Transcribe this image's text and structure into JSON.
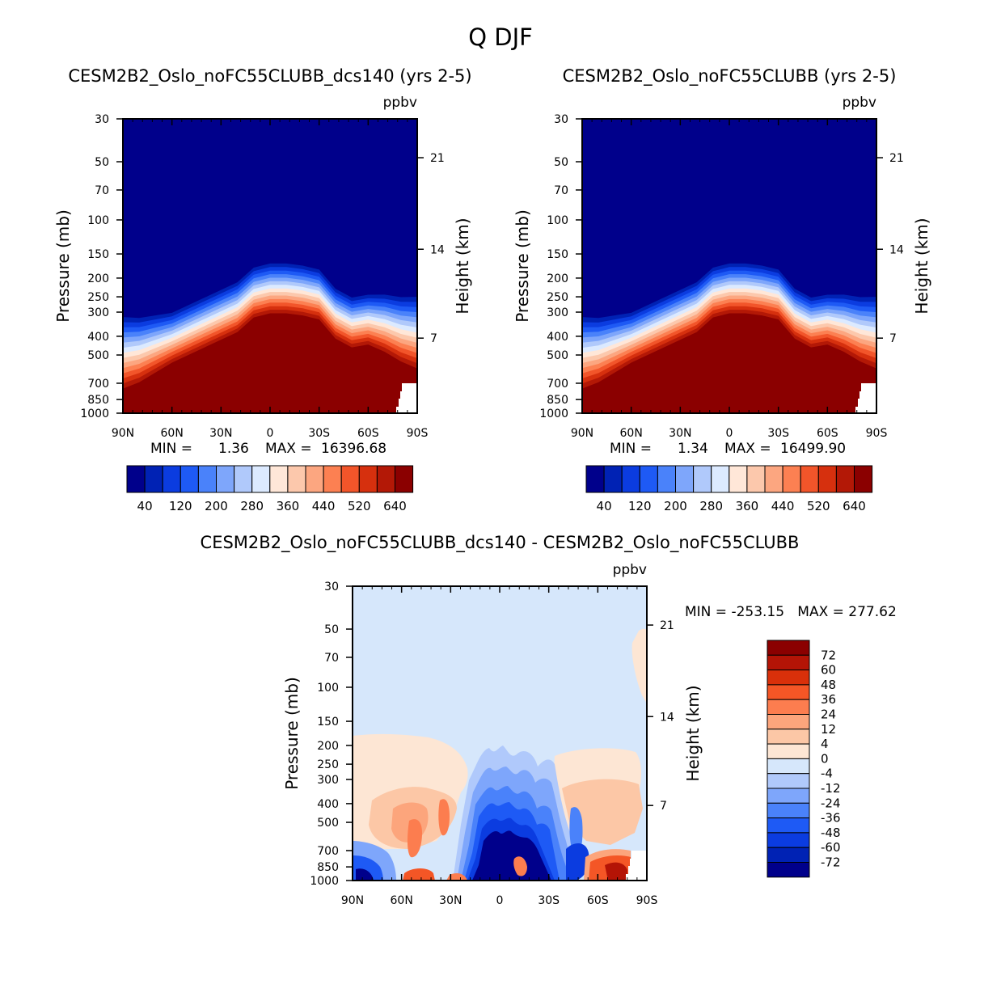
{
  "figure": {
    "title": "Q DJF"
  },
  "colors": {
    "seq": [
      "#00008b",
      "#0022b4",
      "#0b3ce0",
      "#1e5af5",
      "#4a82fa",
      "#7ea6fb",
      "#b0c9fb",
      "#dceaff",
      "#ffe7d8",
      "#fcc8ac",
      "#fca680",
      "#fc8052",
      "#f2552a",
      "#d6300e",
      "#b31806",
      "#8b0000"
    ],
    "diff": [
      "#00008b",
      "#0022b4",
      "#0b3ce0",
      "#1e5af5",
      "#4a82fa",
      "#7ea6fb",
      "#b0c9fb",
      "#d6e7fb",
      "#fde6d4",
      "#fcc7a6",
      "#fca57c",
      "#fc7d4f",
      "#f45626",
      "#d9300a",
      "#b41406",
      "#8b0000"
    ]
  },
  "chart_data": [
    {
      "type": "contour",
      "title": "CESM2B2_Oslo_noFC55CLUBB_dcs140 (yrs 2-5)",
      "units": "ppbv",
      "ylabel": "Pressure (mb)",
      "ylabel_right": "Height (km)",
      "x_ticklabels": [
        "90N",
        "60N",
        "30N",
        "0",
        "30S",
        "60S",
        "90S"
      ],
      "y_ticklabels": [
        "30",
        "50",
        "70",
        "100",
        "150",
        "200",
        "250",
        "300",
        "400",
        "500",
        "700",
        "850",
        "1000"
      ],
      "y_right_ticklabels": [
        "21",
        "14",
        "7"
      ],
      "stats": {
        "min_label": "MIN =",
        "min": "1.36",
        "max_label": "MAX =",
        "max": "16396.68"
      },
      "colorbar_labels": [
        "40",
        "120",
        "200",
        "280",
        "360",
        "440",
        "520",
        "640"
      ],
      "profile_lat": [
        90,
        80,
        60,
        40,
        20,
        10,
        0,
        -10,
        -20,
        -30,
        -40,
        -50,
        -60,
        -70,
        -80,
        -90
      ],
      "profile_tropopause_mb": [
        420,
        410,
        360,
        300,
        250,
        210,
        200,
        200,
        205,
        215,
        270,
        300,
        290,
        300,
        320,
        330
      ]
    },
    {
      "type": "contour",
      "title": "CESM2B2_Oslo_noFC55CLUBB (yrs 2-5)",
      "units": "ppbv",
      "ylabel": "Pressure (mb)",
      "ylabel_right": "Height (km)",
      "x_ticklabels": [
        "90N",
        "60N",
        "30N",
        "0",
        "30S",
        "60S",
        "90S"
      ],
      "y_ticklabels": [
        "30",
        "50",
        "70",
        "100",
        "150",
        "200",
        "250",
        "300",
        "400",
        "500",
        "700",
        "850",
        "1000"
      ],
      "y_right_ticklabels": [
        "21",
        "14",
        "7"
      ],
      "stats": {
        "min_label": "MIN =",
        "min": "1.34",
        "max_label": "MAX =",
        "max": "16499.90"
      },
      "colorbar_labels": [
        "40",
        "120",
        "200",
        "280",
        "360",
        "440",
        "520",
        "640"
      ]
    },
    {
      "type": "contour",
      "title": "CESM2B2_Oslo_noFC55CLUBB_dcs140 - CESM2B2_Oslo_noFC55CLUBB",
      "units": "ppbv",
      "ylabel": "Pressure (mb)",
      "ylabel_right": "Height (km)",
      "x_ticklabels": [
        "90N",
        "60N",
        "30N",
        "0",
        "30S",
        "60S",
        "90S"
      ],
      "y_ticklabels": [
        "30",
        "50",
        "70",
        "100",
        "150",
        "200",
        "250",
        "300",
        "400",
        "500",
        "700",
        "850",
        "1000"
      ],
      "y_right_ticklabels": [
        "21",
        "14",
        "7"
      ],
      "stats": {
        "text": "MIN = -253.15   MAX = 277.62",
        "min": "-253.15",
        "max": "277.62"
      },
      "colorbar_labels": [
        "72",
        "60",
        "48",
        "36",
        "24",
        "12",
        "4",
        "0",
        "-4",
        "-12",
        "-24",
        "-36",
        "-48",
        "-60",
        "-72"
      ]
    }
  ]
}
